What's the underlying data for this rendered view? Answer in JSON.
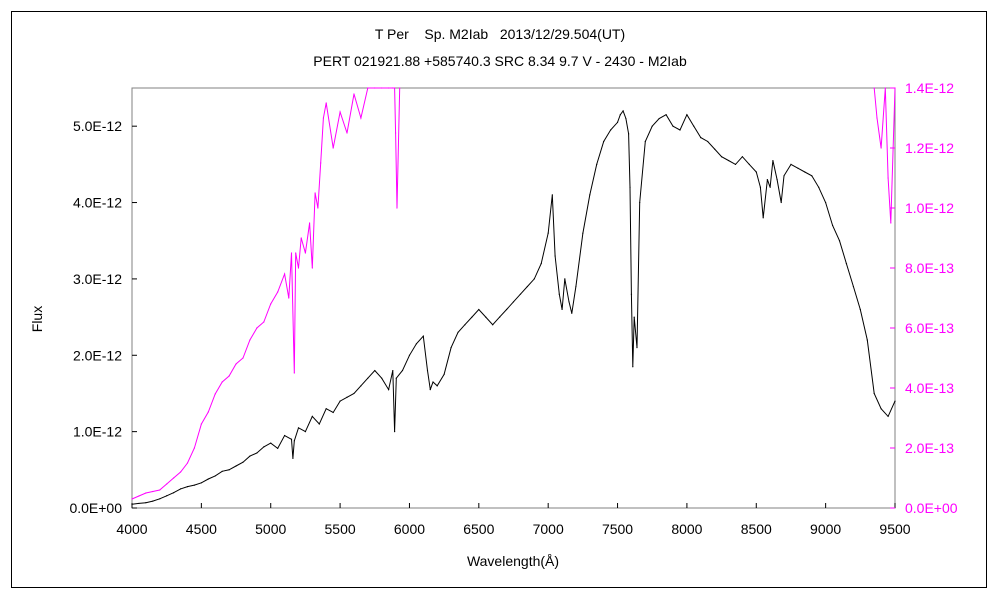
{
  "chart_data": {
    "type": "line",
    "title": "T Per    Sp. M2Iab   2013/12/29.504(UT)",
    "subtitle": "PERT 021921.88 +585740.3 SRC 8.34 9.7 V - 2430 - M2Iab",
    "xlabel": "Wavelength(Å)",
    "ylabel": "Flux",
    "xlim": [
      4000,
      9500
    ],
    "ylim": [
      0,
      5.5e-12
    ],
    "y2lim": [
      0,
      1.4e-12
    ],
    "grid": false,
    "x_ticks": [
      4000,
      4500,
      5000,
      5500,
      6000,
      6500,
      7000,
      7500,
      8000,
      8500,
      9000,
      9500
    ],
    "y_ticks": [
      {
        "value": 0,
        "label": "0.0E+00"
      },
      {
        "value": 1e-12,
        "label": "1.0E-12"
      },
      {
        "value": 2e-12,
        "label": "2.0E-12"
      },
      {
        "value": 3e-12,
        "label": "3.0E-12"
      },
      {
        "value": 4e-12,
        "label": "4.0E-12"
      },
      {
        "value": 5e-12,
        "label": "5.0E-12"
      }
    ],
    "y2_ticks": [
      {
        "value": 0,
        "label": "0.0E+00"
      },
      {
        "value": 2e-13,
        "label": "2.0E-13"
      },
      {
        "value": 4e-13,
        "label": "4.0E-13"
      },
      {
        "value": 6e-13,
        "label": "6.0E-13"
      },
      {
        "value": 8e-13,
        "label": "8.0E-13"
      },
      {
        "value": 1e-12,
        "label": "1.0E-12"
      },
      {
        "value": 1.2e-12,
        "label": "1.2E-12"
      },
      {
        "value": 1.4e-12,
        "label": "1.4E-12"
      }
    ],
    "colors": {
      "primary": "#000000",
      "secondary": "#ff00ff"
    },
    "series": [
      {
        "axis": "left",
        "color": "#000000",
        "x": [
          4000,
          4050,
          4100,
          4150,
          4200,
          4250,
          4300,
          4350,
          4400,
          4450,
          4500,
          4550,
          4600,
          4650,
          4700,
          4750,
          4800,
          4850,
          4900,
          4950,
          5000,
          5050,
          5100,
          5150,
          5160,
          5170,
          5200,
          5250,
          5300,
          5350,
          5400,
          5450,
          5500,
          5550,
          5600,
          5650,
          5700,
          5750,
          5800,
          5850,
          5880,
          5893,
          5905,
          5950,
          6000,
          6050,
          6100,
          6130,
          6150,
          6170,
          6200,
          6250,
          6300,
          6350,
          6400,
          6450,
          6500,
          6550,
          6600,
          6650,
          6700,
          6750,
          6800,
          6850,
          6900,
          6950,
          7000,
          7030,
          7050,
          7080,
          7100,
          7120,
          7150,
          7170,
          7200,
          7250,
          7300,
          7350,
          7400,
          7450,
          7500,
          7520,
          7540,
          7560,
          7580,
          7590,
          7600,
          7610,
          7620,
          7640,
          7660,
          7700,
          7750,
          7800,
          7850,
          7900,
          7950,
          8000,
          8050,
          8100,
          8150,
          8200,
          8250,
          8300,
          8350,
          8400,
          8450,
          8500,
          8530,
          8550,
          8580,
          8600,
          8620,
          8650,
          8680,
          8700,
          8750,
          8800,
          8850,
          8900,
          8950,
          9000,
          9050,
          9100,
          9150,
          9200,
          9250,
          9300,
          9350,
          9400,
          9450,
          9500
        ],
        "y": [
          5e-14,
          6e-14,
          7e-14,
          9e-14,
          1.2e-13,
          1.6e-13,
          2e-13,
          2.5e-13,
          2.8e-13,
          3e-13,
          3.3e-13,
          3.8e-13,
          4.2e-13,
          4.8e-13,
          5e-13,
          5.5e-13,
          6e-13,
          6.8e-13,
          7.2e-13,
          8e-13,
          8.5e-13,
          7.8e-13,
          9.5e-13,
          9e-13,
          6.5e-13,
          8.8e-13,
          1.05e-12,
          1e-12,
          1.2e-12,
          1.1e-12,
          1.3e-12,
          1.25e-12,
          1.4e-12,
          1.45e-12,
          1.5e-12,
          1.6e-12,
          1.7e-12,
          1.8e-12,
          1.7e-12,
          1.55e-12,
          1.8e-12,
          1e-12,
          1.7e-12,
          1.8e-12,
          2e-12,
          2.15e-12,
          2.25e-12,
          1.8e-12,
          1.55e-12,
          1.65e-12,
          1.6e-12,
          1.75e-12,
          2.1e-12,
          2.3e-12,
          2.4e-12,
          2.5e-12,
          2.6e-12,
          2.5e-12,
          2.4e-12,
          2.5e-12,
          2.6e-12,
          2.7e-12,
          2.8e-12,
          2.9e-12,
          3e-12,
          3.2e-12,
          3.6e-12,
          4.1e-12,
          3.3e-12,
          2.8e-12,
          2.6e-12,
          3e-12,
          2.7e-12,
          2.55e-12,
          2.9e-12,
          3.6e-12,
          4.1e-12,
          4.5e-12,
          4.8e-12,
          4.95e-12,
          5.05e-12,
          5.15e-12,
          5.2e-12,
          5.1e-12,
          4.9e-12,
          4.2e-12,
          2.8e-12,
          1.85e-12,
          2.5e-12,
          2.1e-12,
          4e-12,
          4.8e-12,
          5e-12,
          5.1e-12,
          5.15e-12,
          5e-12,
          4.95e-12,
          5.15e-12,
          5e-12,
          4.85e-12,
          4.8e-12,
          4.7e-12,
          4.6e-12,
          4.55e-12,
          4.5e-12,
          4.6e-12,
          4.5e-12,
          4.4e-12,
          4.2e-12,
          3.8e-12,
          4.3e-12,
          4.2e-12,
          4.55e-12,
          4.3e-12,
          4e-12,
          4.35e-12,
          4.5e-12,
          4.45e-12,
          4.4e-12,
          4.35e-12,
          4.2e-12,
          4e-12,
          3.7e-12,
          3.5e-12,
          3.2e-12,
          2.9e-12,
          2.6e-12,
          2.2e-12,
          1.5e-12,
          1.3e-12,
          1.2e-12,
          1.4e-12
        ]
      },
      {
        "axis": "right",
        "color": "#ff00ff",
        "x": [
          4000,
          4050,
          4100,
          4150,
          4200,
          4250,
          4300,
          4350,
          4400,
          4450,
          4500,
          4550,
          4600,
          4650,
          4700,
          4750,
          4800,
          4850,
          4900,
          4950,
          5000,
          5050,
          5100,
          5130,
          5150,
          5170,
          5180,
          5200,
          5220,
          5250,
          5280,
          5300,
          5320,
          5340,
          5360,
          5380,
          5400,
          5450,
          5500,
          5550,
          5600,
          5650,
          5700,
          5750,
          5800,
          5850,
          5880,
          5893,
          5900,
          5910,
          5930,
          9350,
          9370,
          9400,
          9430,
          9450,
          9470,
          9500
        ],
        "y": [
          3e-14,
          4e-14,
          5e-14,
          5.5e-14,
          6e-14,
          8e-14,
          1e-13,
          1.2e-13,
          1.5e-13,
          2e-13,
          2.8e-13,
          3.2e-13,
          3.8e-13,
          4.2e-13,
          4.4e-13,
          4.8e-13,
          5e-13,
          5.6e-13,
          6e-13,
          6.2e-13,
          6.8e-13,
          7.2e-13,
          7.8e-13,
          7e-13,
          8.5e-13,
          4.5e-13,
          8.5e-13,
          8e-13,
          9e-13,
          8.5e-13,
          9.5e-13,
          8e-13,
          1.05e-12,
          1e-12,
          1.15e-12,
          1.3e-12,
          1.35e-12,
          1.2e-12,
          1.32e-12,
          1.25e-12,
          1.38e-12,
          1.3e-12,
          1.4e-12,
          1.45e-12,
          1.45e-12,
          1.45e-12,
          1.45e-12,
          1.45e-12,
          1.25e-12,
          1e-12,
          1.45e-12,
          1.45e-12,
          1.3e-12,
          1.2e-12,
          1.45e-12,
          1.1e-12,
          9.5e-13,
          1.45e-12
        ]
      }
    ]
  }
}
